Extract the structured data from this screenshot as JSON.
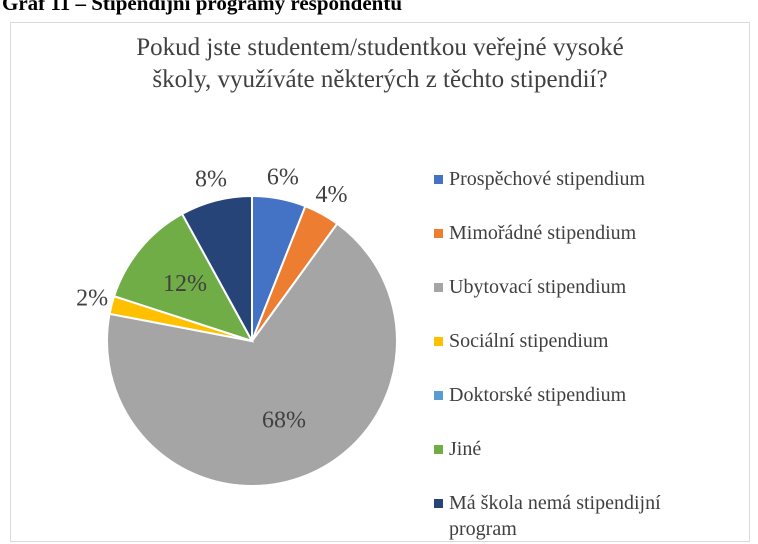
{
  "caption": "Graf 11 – Stipendijní programy respondentů",
  "chart_data": {
    "type": "pie",
    "title": "Pokud jste studentem/studentkou veřejné vysoké školy, využíváte některých z těchto stipendií?",
    "categories": [
      "Prospěchové stipendium",
      "Mimořádné stipendium",
      "Ubytovací stipendium",
      "Sociální stipendium",
      "Doktorské stipendium",
      "Jiné",
      "Má škola nemá stipendijní program"
    ],
    "values": [
      6,
      4,
      68,
      2,
      0,
      12,
      8
    ],
    "value_labels": [
      "6%",
      "4%",
      "68%",
      "2%",
      null,
      "12%",
      "8%"
    ],
    "colors": [
      "#4472c4",
      "#ed7d31",
      "#a5a5a5",
      "#ffc000",
      "#5b9bd5",
      "#70ad47",
      "#264478"
    ],
    "legend": "right"
  }
}
